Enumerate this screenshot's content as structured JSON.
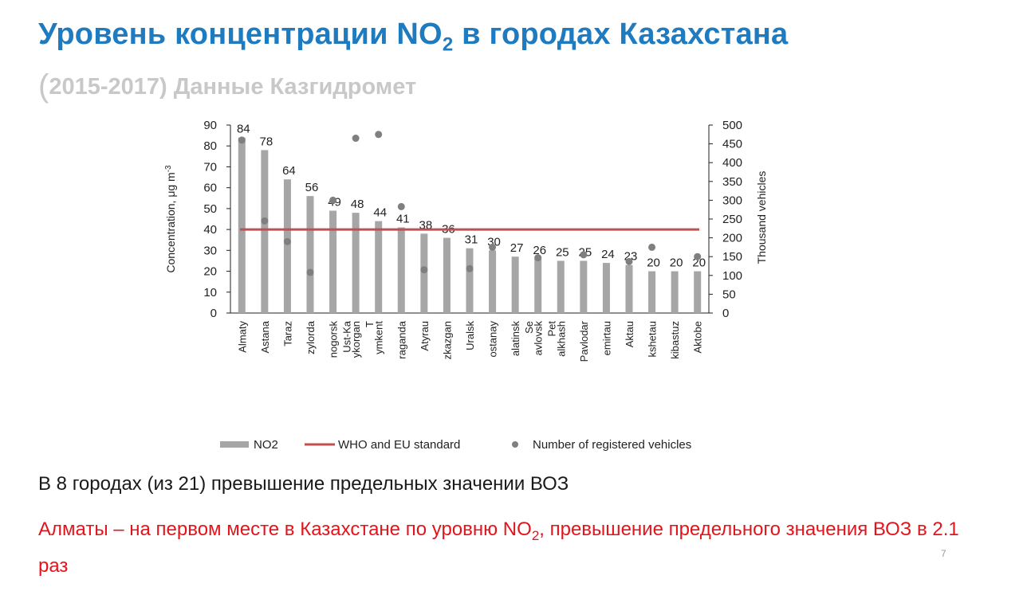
{
  "slide": {
    "title_main": "Уровень концентрации NO",
    "title_sub": "2",
    "title_rest": " в городах Казахстана",
    "subtitle_paren": "(",
    "subtitle_text": "2015-2017) Данные Казгидромет",
    "note1": "В 8 городах (из 21) превышение предельных значении ВОЗ",
    "note2_part1": "Алматы – на первом месте в Казахстане по уровню NO",
    "note2_sub": "2",
    "note2_part2": ", превышение предельного значения ВОЗ в 2.1 раз",
    "page_number": "7"
  },
  "chart_data": {
    "type": "bar",
    "categories": [
      "Almaty",
      "Astana",
      "Taraz",
      "zylorda",
      "nogorsk",
      "ykorgan",
      "ymkent",
      "raganda",
      "Atyrau",
      "zkazgan",
      "Uralsk",
      "ostanay",
      "alatinsk",
      "avlovsk",
      "alkhash",
      "Pavlodar",
      "emirtau",
      "Aktau",
      "kshetau",
      "kibastuz",
      "Aktobe"
    ],
    "category_second_lines": [
      "",
      "",
      "",
      "",
      "Ust-Ka",
      "T",
      "",
      "",
      "",
      "",
      "",
      "",
      "Se",
      "Pet",
      "",
      "",
      "",
      "",
      "",
      "",
      ""
    ],
    "series": [
      {
        "name": "NO2",
        "axis": "left",
        "kind": "bar",
        "color": "#a6a6a6",
        "values": [
          84,
          78,
          64,
          56,
          49,
          48,
          44,
          41,
          38,
          36,
          31,
          30,
          27,
          26,
          25,
          25,
          24,
          23,
          20,
          20,
          20
        ],
        "labels": [
          "84",
          "78",
          "64",
          "56",
          "49",
          "48",
          "44",
          "41",
          "38",
          "36",
          "31",
          "30",
          "27",
          "26",
          "25",
          "25",
          "24",
          "23",
          "20",
          "20",
          "20"
        ]
      },
      {
        "name": "WHO and EU standard",
        "axis": "left",
        "kind": "line",
        "color": "#c0504d",
        "value": 40
      },
      {
        "name": "Number of registered vehicles",
        "axis": "right",
        "kind": "scatter",
        "color": "#7f7f7f",
        "values": [
          460,
          245,
          190,
          108,
          300,
          465,
          475,
          283,
          115,
          null,
          118,
          175,
          null,
          147,
          null,
          155,
          null,
          137,
          175,
          null,
          150
        ]
      }
    ],
    "ylabel": "Concentration, μg m",
    "ylabel_sup": "-3",
    "y2label": "Thousand vehicles",
    "ylim": [
      0,
      90
    ],
    "y_ticks": [
      0,
      10,
      20,
      30,
      40,
      50,
      60,
      70,
      80,
      90
    ],
    "y2lim": [
      0,
      500
    ],
    "y2_ticks": [
      0,
      50,
      100,
      150,
      200,
      250,
      300,
      350,
      400,
      450,
      500
    ],
    "grid": false,
    "legend_position": "bottom"
  }
}
